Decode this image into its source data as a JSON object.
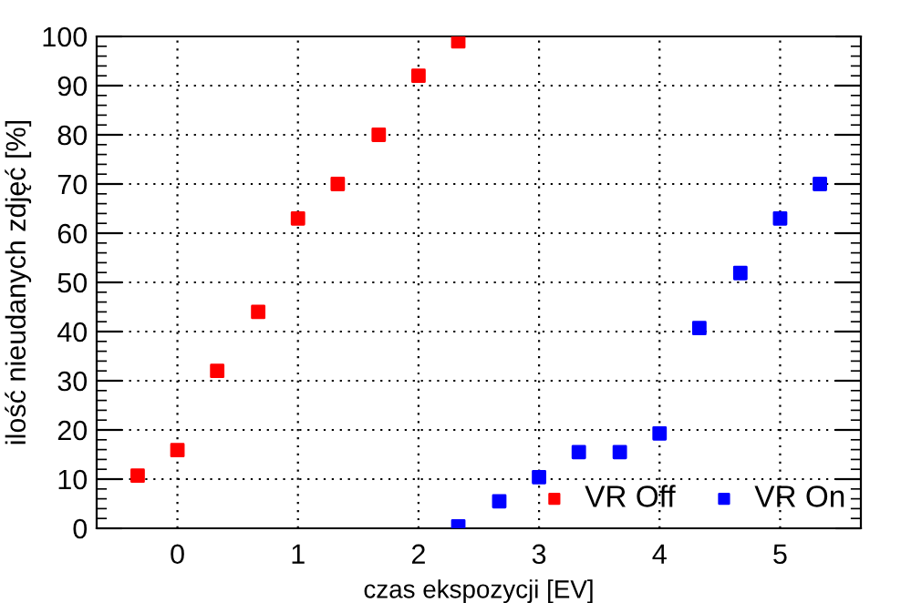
{
  "chart_data": {
    "type": "scatter",
    "xlabel": "czas ekspozycji [EV]",
    "ylabel": "ilość nieudanych zdjęć [%]",
    "xlim": [
      -0.67,
      5.67
    ],
    "xticks": [
      0,
      1,
      2,
      3,
      4,
      5
    ],
    "ylim": [
      0,
      100
    ],
    "yticks": [
      0,
      10,
      20,
      30,
      40,
      50,
      60,
      70,
      80,
      90,
      100
    ],
    "grid": true,
    "legend": "bottom right",
    "marker": "square",
    "series": [
      {
        "name": "VR Off",
        "color": "#ff0000",
        "x": [
          -0.33,
          0,
          0.33,
          0.67,
          1,
          1.33,
          1.67,
          2,
          2.33
        ],
        "values": [
          10.7,
          15.9,
          32,
          44,
          63,
          70,
          80,
          92,
          99
        ]
      },
      {
        "name": "VR On",
        "color": "#0000ff",
        "x": [
          2.33,
          2.67,
          3,
          3.33,
          3.67,
          4,
          4.33,
          4.67,
          5,
          5.33
        ],
        "values": [
          0.4,
          5.5,
          10.4,
          15.5,
          15.5,
          19.3,
          40.7,
          51.9,
          63,
          70
        ]
      }
    ]
  }
}
